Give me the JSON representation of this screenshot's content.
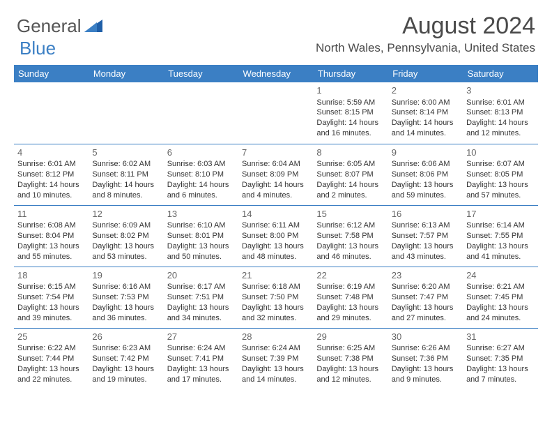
{
  "brand": {
    "general": "General",
    "blue": "Blue"
  },
  "title": "August 2024",
  "subtitle": "North Wales, Pennsylvania, United States",
  "header_bg": "#3b7fc4",
  "header_fg": "#ffffff",
  "border_color": "#3b7fc4",
  "daynames": [
    "Sunday",
    "Monday",
    "Tuesday",
    "Wednesday",
    "Thursday",
    "Friday",
    "Saturday"
  ],
  "weeks": [
    [
      null,
      null,
      null,
      null,
      {
        "n": "1",
        "sr": "Sunrise: 5:59 AM",
        "ss": "Sunset: 8:15 PM",
        "d1": "Daylight: 14 hours",
        "d2": "and 16 minutes."
      },
      {
        "n": "2",
        "sr": "Sunrise: 6:00 AM",
        "ss": "Sunset: 8:14 PM",
        "d1": "Daylight: 14 hours",
        "d2": "and 14 minutes."
      },
      {
        "n": "3",
        "sr": "Sunrise: 6:01 AM",
        "ss": "Sunset: 8:13 PM",
        "d1": "Daylight: 14 hours",
        "d2": "and 12 minutes."
      }
    ],
    [
      {
        "n": "4",
        "sr": "Sunrise: 6:01 AM",
        "ss": "Sunset: 8:12 PM",
        "d1": "Daylight: 14 hours",
        "d2": "and 10 minutes."
      },
      {
        "n": "5",
        "sr": "Sunrise: 6:02 AM",
        "ss": "Sunset: 8:11 PM",
        "d1": "Daylight: 14 hours",
        "d2": "and 8 minutes."
      },
      {
        "n": "6",
        "sr": "Sunrise: 6:03 AM",
        "ss": "Sunset: 8:10 PM",
        "d1": "Daylight: 14 hours",
        "d2": "and 6 minutes."
      },
      {
        "n": "7",
        "sr": "Sunrise: 6:04 AM",
        "ss": "Sunset: 8:09 PM",
        "d1": "Daylight: 14 hours",
        "d2": "and 4 minutes."
      },
      {
        "n": "8",
        "sr": "Sunrise: 6:05 AM",
        "ss": "Sunset: 8:07 PM",
        "d1": "Daylight: 14 hours",
        "d2": "and 2 minutes."
      },
      {
        "n": "9",
        "sr": "Sunrise: 6:06 AM",
        "ss": "Sunset: 8:06 PM",
        "d1": "Daylight: 13 hours",
        "d2": "and 59 minutes."
      },
      {
        "n": "10",
        "sr": "Sunrise: 6:07 AM",
        "ss": "Sunset: 8:05 PM",
        "d1": "Daylight: 13 hours",
        "d2": "and 57 minutes."
      }
    ],
    [
      {
        "n": "11",
        "sr": "Sunrise: 6:08 AM",
        "ss": "Sunset: 8:04 PM",
        "d1": "Daylight: 13 hours",
        "d2": "and 55 minutes."
      },
      {
        "n": "12",
        "sr": "Sunrise: 6:09 AM",
        "ss": "Sunset: 8:02 PM",
        "d1": "Daylight: 13 hours",
        "d2": "and 53 minutes."
      },
      {
        "n": "13",
        "sr": "Sunrise: 6:10 AM",
        "ss": "Sunset: 8:01 PM",
        "d1": "Daylight: 13 hours",
        "d2": "and 50 minutes."
      },
      {
        "n": "14",
        "sr": "Sunrise: 6:11 AM",
        "ss": "Sunset: 8:00 PM",
        "d1": "Daylight: 13 hours",
        "d2": "and 48 minutes."
      },
      {
        "n": "15",
        "sr": "Sunrise: 6:12 AM",
        "ss": "Sunset: 7:58 PM",
        "d1": "Daylight: 13 hours",
        "d2": "and 46 minutes."
      },
      {
        "n": "16",
        "sr": "Sunrise: 6:13 AM",
        "ss": "Sunset: 7:57 PM",
        "d1": "Daylight: 13 hours",
        "d2": "and 43 minutes."
      },
      {
        "n": "17",
        "sr": "Sunrise: 6:14 AM",
        "ss": "Sunset: 7:55 PM",
        "d1": "Daylight: 13 hours",
        "d2": "and 41 minutes."
      }
    ],
    [
      {
        "n": "18",
        "sr": "Sunrise: 6:15 AM",
        "ss": "Sunset: 7:54 PM",
        "d1": "Daylight: 13 hours",
        "d2": "and 39 minutes."
      },
      {
        "n": "19",
        "sr": "Sunrise: 6:16 AM",
        "ss": "Sunset: 7:53 PM",
        "d1": "Daylight: 13 hours",
        "d2": "and 36 minutes."
      },
      {
        "n": "20",
        "sr": "Sunrise: 6:17 AM",
        "ss": "Sunset: 7:51 PM",
        "d1": "Daylight: 13 hours",
        "d2": "and 34 minutes."
      },
      {
        "n": "21",
        "sr": "Sunrise: 6:18 AM",
        "ss": "Sunset: 7:50 PM",
        "d1": "Daylight: 13 hours",
        "d2": "and 32 minutes."
      },
      {
        "n": "22",
        "sr": "Sunrise: 6:19 AM",
        "ss": "Sunset: 7:48 PM",
        "d1": "Daylight: 13 hours",
        "d2": "and 29 minutes."
      },
      {
        "n": "23",
        "sr": "Sunrise: 6:20 AM",
        "ss": "Sunset: 7:47 PM",
        "d1": "Daylight: 13 hours",
        "d2": "and 27 minutes."
      },
      {
        "n": "24",
        "sr": "Sunrise: 6:21 AM",
        "ss": "Sunset: 7:45 PM",
        "d1": "Daylight: 13 hours",
        "d2": "and 24 minutes."
      }
    ],
    [
      {
        "n": "25",
        "sr": "Sunrise: 6:22 AM",
        "ss": "Sunset: 7:44 PM",
        "d1": "Daylight: 13 hours",
        "d2": "and 22 minutes."
      },
      {
        "n": "26",
        "sr": "Sunrise: 6:23 AM",
        "ss": "Sunset: 7:42 PM",
        "d1": "Daylight: 13 hours",
        "d2": "and 19 minutes."
      },
      {
        "n": "27",
        "sr": "Sunrise: 6:24 AM",
        "ss": "Sunset: 7:41 PM",
        "d1": "Daylight: 13 hours",
        "d2": "and 17 minutes."
      },
      {
        "n": "28",
        "sr": "Sunrise: 6:24 AM",
        "ss": "Sunset: 7:39 PM",
        "d1": "Daylight: 13 hours",
        "d2": "and 14 minutes."
      },
      {
        "n": "29",
        "sr": "Sunrise: 6:25 AM",
        "ss": "Sunset: 7:38 PM",
        "d1": "Daylight: 13 hours",
        "d2": "and 12 minutes."
      },
      {
        "n": "30",
        "sr": "Sunrise: 6:26 AM",
        "ss": "Sunset: 7:36 PM",
        "d1": "Daylight: 13 hours",
        "d2": "and 9 minutes."
      },
      {
        "n": "31",
        "sr": "Sunrise: 6:27 AM",
        "ss": "Sunset: 7:35 PM",
        "d1": "Daylight: 13 hours",
        "d2": "and 7 minutes."
      }
    ]
  ]
}
